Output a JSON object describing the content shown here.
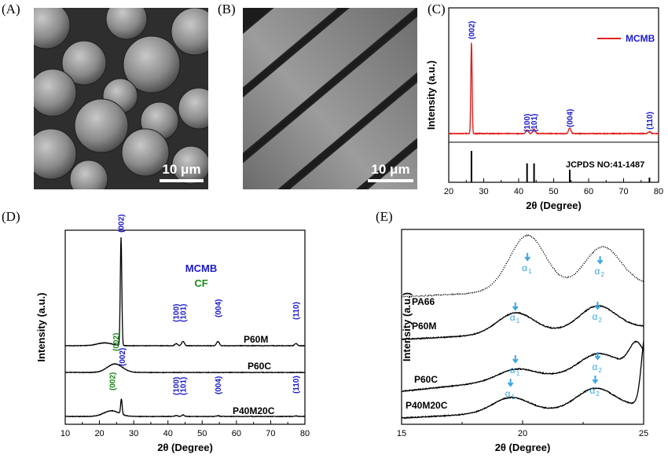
{
  "panels": {
    "A": {
      "label": "(A)",
      "scale_label": "10 μm"
    },
    "B": {
      "label": "(B)",
      "scale_label": "10 μm"
    }
  },
  "colors": {
    "mcmb": "#1a1acc",
    "cf": "#1a8a1a",
    "red": "#e02020",
    "cyan": "#3aa6e0",
    "black": "#000000"
  },
  "chart_data": [
    {
      "panel": "(C)",
      "type": "line",
      "xlabel": "2θ (Degree)",
      "ylabel": "Intensity (a.u.)",
      "xlim": [
        20,
        80
      ],
      "xticks": [
        20,
        30,
        40,
        50,
        60,
        70,
        80
      ],
      "legend": {
        "name": "MCMB",
        "placement": "top-right"
      },
      "series": [
        {
          "name": "MCMB",
          "peaks": [
            {
              "x": 26.5,
              "h": 1.0
            },
            {
              "x": 42.4,
              "h": 0.04
            },
            {
              "x": 44.4,
              "h": 0.05
            },
            {
              "x": 54.6,
              "h": 0.06
            },
            {
              "x": 77.4,
              "h": 0.02
            }
          ]
        }
      ],
      "peak_labels": [
        {
          "x": 26.5,
          "text": "(002)"
        },
        {
          "x": 42.4,
          "text": "(100)"
        },
        {
          "x": 44.4,
          "text": "(101)"
        },
        {
          "x": 54.6,
          "text": "(004)"
        },
        {
          "x": 77.4,
          "text": "(110)"
        }
      ],
      "reference": {
        "label": "JCPDS NO:41-1487",
        "lines": [
          {
            "x": 26.5,
            "h": 1.0
          },
          {
            "x": 42.4,
            "h": 0.6
          },
          {
            "x": 44.4,
            "h": 0.6
          },
          {
            "x": 54.6,
            "h": 0.4
          },
          {
            "x": 77.4,
            "h": 0.15
          }
        ]
      }
    },
    {
      "panel": "(D)",
      "type": "line",
      "xlabel": "2θ (Degree)",
      "ylabel": "Intensity (a.u.)",
      "xlim": [
        10,
        80
      ],
      "xticks": [
        10,
        20,
        30,
        40,
        50,
        60,
        70,
        80
      ],
      "legend_texts": [
        {
          "text": "MCMB",
          "color": "mcmb"
        },
        {
          "text": "CF",
          "color": "cf"
        }
      ],
      "series": [
        {
          "name": "P60M",
          "peaks": [
            {
              "x": 26.3,
              "h": 1.0
            },
            {
              "x": 42.4,
              "h": 0.02
            },
            {
              "x": 44.4,
              "h": 0.04
            },
            {
              "x": 54.6,
              "h": 0.04
            },
            {
              "x": 77.4,
              "h": 0.02
            }
          ],
          "hump": {
            "x": 21.5,
            "h": 0.03
          }
        },
        {
          "name": "P60C",
          "peaks": [],
          "hump": {
            "x": 24.5,
            "h": 0.12
          }
        },
        {
          "name": "P40M20C",
          "peaks": [
            {
              "x": 26.4,
              "h": 0.32
            },
            {
              "x": 42.4,
              "h": 0.02
            },
            {
              "x": 44.4,
              "h": 0.03
            },
            {
              "x": 54.6,
              "h": 0.015
            },
            {
              "x": 77.4,
              "h": 0.01
            }
          ],
          "hump": {
            "x": 23.5,
            "h": 0.06
          }
        }
      ],
      "peak_labels_mcmb_top": [
        {
          "x": 26.3,
          "text": "(002)"
        },
        {
          "x": 42.4,
          "text": "(100)"
        },
        {
          "x": 44.4,
          "text": "(101)"
        },
        {
          "x": 54.6,
          "text": "(004)"
        },
        {
          "x": 77.4,
          "text": "(110)"
        }
      ],
      "peak_label_cf_mid": {
        "x": 24.8,
        "text": "(002)"
      },
      "peak_labels_bottom": [
        {
          "x": 23.8,
          "text": "(002)",
          "color": "cf"
        },
        {
          "x": 26.6,
          "text": "(002)",
          "color": "mcmb"
        },
        {
          "x": 42.4,
          "text": "(100)",
          "color": "mcmb"
        },
        {
          "x": 44.4,
          "text": "(101)",
          "color": "mcmb"
        },
        {
          "x": 54.6,
          "text": "(004)",
          "color": "mcmb"
        },
        {
          "x": 77.4,
          "text": "(110)",
          "color": "mcmb"
        }
      ]
    },
    {
      "panel": "(E)",
      "type": "line",
      "xlabel": "2θ (Degree)",
      "ylabel": "Intensity (a.u.)",
      "xlim": [
        15,
        25
      ],
      "xticks": [
        15,
        20,
        25
      ],
      "series": [
        {
          "name": "PA66",
          "style": "dotted",
          "peaks": [
            {
              "x": 20.2,
              "h": 1.0
            },
            {
              "x": 23.3,
              "h": 0.72
            }
          ]
        },
        {
          "name": "P60M",
          "style": "solid",
          "peaks": [
            {
              "x": 19.7,
              "h": 0.55
            },
            {
              "x": 23.1,
              "h": 0.62
            }
          ]
        },
        {
          "name": "P60C",
          "style": "solid",
          "peaks": [
            {
              "x": 19.7,
              "h": 0.3
            },
            {
              "x": 23.1,
              "h": 0.5
            }
          ]
        },
        {
          "name": "P40M20C",
          "style": "solid",
          "peaks": [
            {
              "x": 19.5,
              "h": 0.45
            },
            {
              "x": 23.0,
              "h": 0.6
            }
          ]
        }
      ],
      "alpha_labels": [
        "α",
        "1",
        "α",
        "2"
      ]
    }
  ]
}
